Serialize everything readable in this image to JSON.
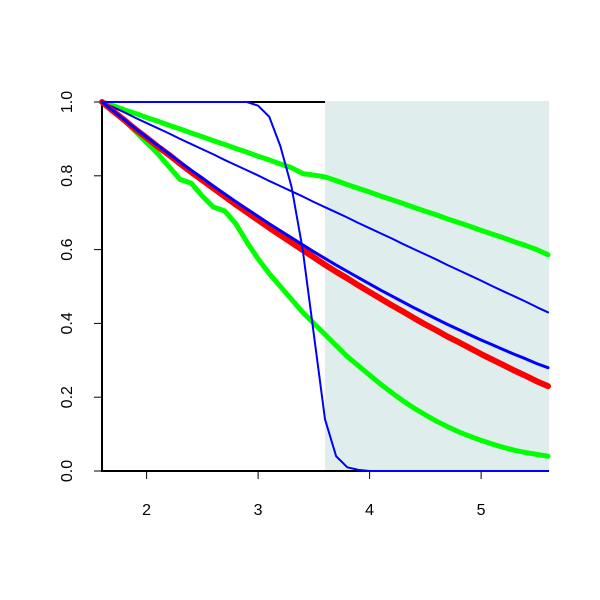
{
  "chart_data": {
    "type": "line",
    "x": [
      1.6,
      1.7,
      1.8,
      1.9,
      2.0,
      2.1,
      2.2,
      2.3,
      2.4,
      2.5,
      2.6,
      2.7,
      2.8,
      2.9,
      3.0,
      3.1,
      3.2,
      3.3,
      3.4,
      3.5,
      3.6,
      3.7,
      3.8,
      3.9,
      4.0,
      4.1,
      4.2,
      4.3,
      4.4,
      4.5,
      4.6,
      4.7,
      4.8,
      4.9,
      5.0,
      5.1,
      5.2,
      5.3,
      5.4,
      5.5,
      5.6
    ],
    "series": [
      {
        "color": "#00ff00",
        "width": 5,
        "values": [
          1,
          0.99,
          0.979,
          0.969,
          0.958,
          0.948,
          0.937,
          0.927,
          0.916,
          0.906,
          0.895,
          0.885,
          0.874,
          0.864,
          0.853,
          0.843,
          0.832,
          0.822,
          0.806,
          0.802,
          0.797,
          0.787,
          0.776,
          0.766,
          0.756,
          0.745,
          0.735,
          0.725,
          0.714,
          0.704,
          0.694,
          0.683,
          0.673,
          0.663,
          0.652,
          0.642,
          0.632,
          0.621,
          0.611,
          0.6,
          0.586
        ]
      },
      {
        "color": "#00ff00",
        "width": 5,
        "values": [
          1,
          0.975,
          0.95,
          0.92,
          0.89,
          0.86,
          0.825,
          0.79,
          0.78,
          0.745,
          0.715,
          0.705,
          0.67,
          0.62,
          0.575,
          0.535,
          0.5,
          0.465,
          0.43,
          0.4,
          0.37,
          0.34,
          0.31,
          0.285,
          0.26,
          0.235,
          0.212,
          0.19,
          0.17,
          0.152,
          0.135,
          0.12,
          0.106,
          0.094,
          0.083,
          0.073,
          0.064,
          0.056,
          0.05,
          0.045,
          0.04
        ]
      },
      {
        "color": "#0000ff",
        "width": 2,
        "values": [
          1,
          0.986,
          0.972,
          0.957,
          0.943,
          0.929,
          0.915,
          0.9,
          0.886,
          0.872,
          0.858,
          0.843,
          0.829,
          0.815,
          0.801,
          0.786,
          0.772,
          0.758,
          0.744,
          0.729,
          0.715,
          0.701,
          0.687,
          0.672,
          0.658,
          0.644,
          0.63,
          0.615,
          0.601,
          0.587,
          0.573,
          0.558,
          0.544,
          0.53,
          0.516,
          0.501,
          0.487,
          0.473,
          0.459,
          0.444,
          0.43
        ]
      },
      {
        "color": "#ff0000",
        "width": 6,
        "values": [
          1,
          0.975,
          0.951,
          0.926,
          0.903,
          0.879,
          0.857,
          0.833,
          0.81,
          0.788,
          0.766,
          0.744,
          0.722,
          0.701,
          0.68,
          0.659,
          0.639,
          0.619,
          0.599,
          0.579,
          0.559,
          0.54,
          0.522,
          0.503,
          0.485,
          0.467,
          0.449,
          0.432,
          0.414,
          0.397,
          0.381,
          0.364,
          0.349,
          0.333,
          0.317,
          0.302,
          0.287,
          0.272,
          0.258,
          0.243,
          0.23
        ]
      },
      {
        "color": "#0000ff",
        "width": 3,
        "values": [
          1,
          0.976,
          0.952,
          0.928,
          0.905,
          0.882,
          0.86,
          0.837,
          0.815,
          0.794,
          0.772,
          0.751,
          0.73,
          0.71,
          0.69,
          0.67,
          0.651,
          0.632,
          0.613,
          0.594,
          0.576,
          0.558,
          0.541,
          0.524,
          0.507,
          0.49,
          0.474,
          0.458,
          0.442,
          0.427,
          0.412,
          0.397,
          0.383,
          0.369,
          0.355,
          0.342,
          0.329,
          0.316,
          0.304,
          0.291,
          0.28
        ]
      },
      {
        "color": "#0000ff",
        "width": 2,
        "values": [
          1,
          1,
          1,
          1,
          1,
          1,
          1,
          1,
          1,
          1,
          1,
          1,
          1,
          1,
          0.99,
          0.96,
          0.88,
          0.77,
          0.6,
          0.37,
          0.14,
          0.04,
          0.01,
          0.003,
          0,
          0,
          0,
          0,
          0,
          0,
          0,
          0,
          0,
          0,
          0,
          0,
          0,
          0,
          0,
          0,
          0
        ]
      }
    ],
    "shaded_region": [
      3.6,
      5.6
    ],
    "shade_color": "#e0eded",
    "xlim": [
      1.6,
      5.6
    ],
    "xticks": [
      2,
      3,
      4,
      5
    ],
    "ylim": [
      0,
      1
    ],
    "yticks": [
      {
        "value": 0,
        "label": "0.0"
      },
      0.2,
      0.4,
      0.6,
      0.8,
      {
        "value": 1,
        "label": "1.0"
      }
    ]
  }
}
